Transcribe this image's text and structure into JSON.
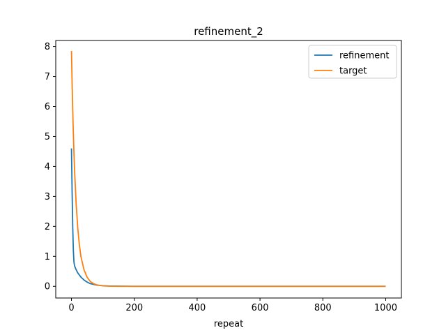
{
  "chart_data": {
    "type": "line",
    "title": "refinement_2",
    "xlabel": "repeat",
    "ylabel": "",
    "xlim": [
      -50,
      1050
    ],
    "ylim": [
      -0.39,
      8.2
    ],
    "xticks": [
      0,
      200,
      400,
      600,
      800,
      1000
    ],
    "yticks": [
      0,
      1,
      2,
      3,
      4,
      5,
      6,
      7,
      8
    ],
    "grid": false,
    "legend": "top-right",
    "series": [
      {
        "name": "refinement",
        "color": "#1f77b4",
        "x": [
          0,
          2,
          4,
          6,
          8,
          10,
          15,
          20,
          30,
          40,
          50,
          60,
          80,
          100,
          120,
          150,
          200,
          300,
          400,
          500,
          600,
          700,
          800,
          900,
          1000
        ],
        "y": [
          4.6,
          3.2,
          2.0,
          1.2,
          0.8,
          0.68,
          0.55,
          0.45,
          0.31,
          0.21,
          0.14,
          0.09,
          0.04,
          0.02,
          0.01,
          0.005,
          0.0,
          0.0,
          0.0,
          0.0,
          0.0,
          0.0,
          0.0,
          0.0,
          0.0
        ]
      },
      {
        "name": "target",
        "color": "#ff7f0e",
        "x": [
          0,
          2,
          4,
          6,
          8,
          10,
          15,
          20,
          25,
          30,
          40,
          50,
          60,
          70,
          80,
          100,
          120,
          150,
          200,
          300,
          400,
          500,
          600,
          700,
          800,
          900,
          1000
        ],
        "y": [
          7.85,
          6.8,
          5.9,
          5.1,
          4.45,
          3.85,
          2.75,
          1.95,
          1.4,
          1.0,
          0.55,
          0.3,
          0.16,
          0.09,
          0.05,
          0.015,
          0.005,
          0.0,
          0.0,
          0.0,
          0.0,
          0.0,
          0.0,
          0.0,
          0.0,
          0.0,
          0.0
        ]
      }
    ]
  }
}
